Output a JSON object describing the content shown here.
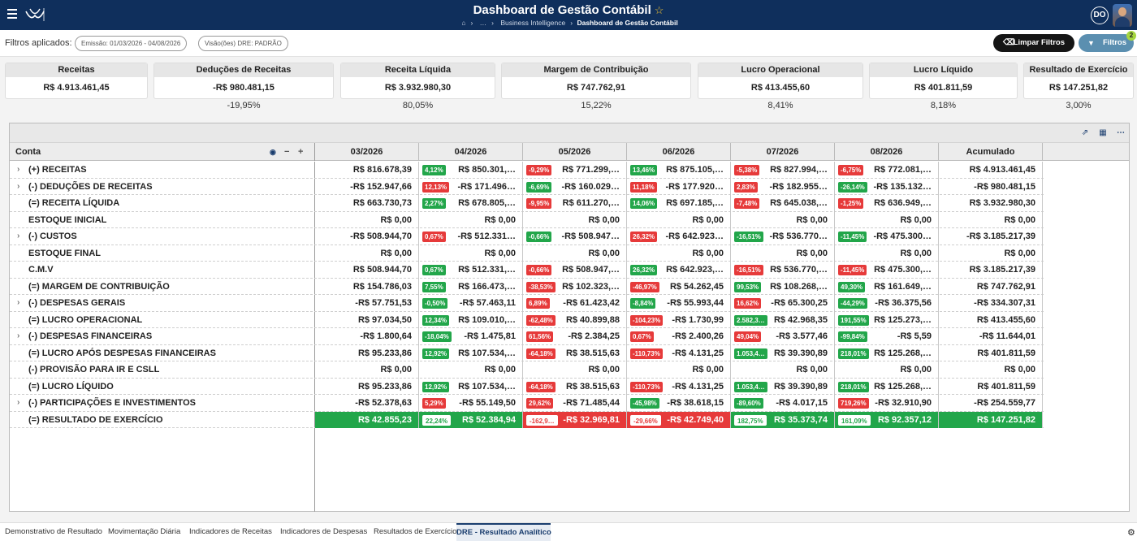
{
  "header": {
    "title": "Dashboard de Gestão Contábil",
    "star": "☆",
    "breadcrumb": [
      "…",
      "Business Intelligence",
      "Dashboard de Gestão Contábil"
    ],
    "user_initials": "DO"
  },
  "filters": {
    "label": "Filtros aplicados:",
    "chips": [
      "Emissão: 01/03/2026 - 04/08/2026",
      "Visão(ões) DRE: PADRÃO"
    ],
    "clear_label": "Limpar Filtros",
    "filter_label": "Filtros",
    "filter_count": "2"
  },
  "cards": [
    {
      "label": "Receitas",
      "value": "R$ 4.913.461,45",
      "pct": ""
    },
    {
      "label": "Deduções de Receitas",
      "value": "-R$ 980.481,15",
      "pct": "-19,95%"
    },
    {
      "label": "Receita Líquida",
      "value": "R$ 3.932.980,30",
      "pct": "80,05%"
    },
    {
      "label": "Margem de Contribuição",
      "value": "R$ 747.762,91",
      "pct": "15,22%"
    },
    {
      "label": "Lucro Operacional",
      "value": "R$ 413.455,60",
      "pct": "8,41%"
    },
    {
      "label": "Lucro Líquido",
      "value": "R$ 401.811,59",
      "pct": "8,18%"
    },
    {
      "label": "Resultado de Exercício",
      "value": "R$ 147.251,82",
      "pct": "3,00%"
    }
  ],
  "table": {
    "col_conta": "Conta",
    "columns": [
      "03/2026",
      "04/2026",
      "05/2026",
      "06/2026",
      "07/2026",
      "08/2026",
      "Acumulado"
    ],
    "rows": [
      {
        "label": "(+) RECEITAS",
        "exp": true,
        "cells": [
          {
            "v": "R$ 816.678,39"
          },
          {
            "d": "4,12%",
            "t": "up",
            "v": "R$ 850.301,…"
          },
          {
            "d": "-9,29%",
            "t": "dn",
            "v": "R$ 771.299,…"
          },
          {
            "d": "13,46%",
            "t": "up",
            "v": "R$ 875.105,…"
          },
          {
            "d": "-5,38%",
            "t": "dn",
            "v": "R$ 827.994,…"
          },
          {
            "d": "-6,75%",
            "t": "dn",
            "v": "R$ 772.081,…"
          },
          {
            "v": "R$ 4.913.461,45"
          }
        ]
      },
      {
        "label": "(-) DEDUÇÕES DE RECEITAS",
        "exp": true,
        "cells": [
          {
            "v": "-R$ 152.947,66"
          },
          {
            "d": "12,13%",
            "t": "dn",
            "v": "-R$ 171.496…"
          },
          {
            "d": "-6,69%",
            "t": "up",
            "v": "-R$ 160.029…"
          },
          {
            "d": "11,18%",
            "t": "dn",
            "v": "-R$ 177.920…"
          },
          {
            "d": "2,83%",
            "t": "dn",
            "v": "-R$ 182.955…"
          },
          {
            "d": "-26,14%",
            "t": "up",
            "v": "-R$ 135.132…"
          },
          {
            "v": "-R$ 980.481,15"
          }
        ]
      },
      {
        "label": "(=) RECEITA LÍQUIDA",
        "exp": false,
        "cells": [
          {
            "v": "R$ 663.730,73"
          },
          {
            "d": "2,27%",
            "t": "up",
            "v": "R$ 678.805,…"
          },
          {
            "d": "-9,95%",
            "t": "dn",
            "v": "R$ 611.270,…"
          },
          {
            "d": "14,06%",
            "t": "up",
            "v": "R$ 697.185,…"
          },
          {
            "d": "-7,48%",
            "t": "dn",
            "v": "R$ 645.038,…"
          },
          {
            "d": "-1,25%",
            "t": "dn",
            "v": "R$ 636.949,…"
          },
          {
            "v": "R$ 3.932.980,30"
          }
        ]
      },
      {
        "label": "ESTOQUE INICIAL",
        "exp": false,
        "cells": [
          {
            "v": "R$ 0,00"
          },
          {
            "v": "R$ 0,00"
          },
          {
            "v": "R$ 0,00"
          },
          {
            "v": "R$ 0,00"
          },
          {
            "v": "R$ 0,00"
          },
          {
            "v": "R$ 0,00"
          },
          {
            "v": "R$ 0,00"
          }
        ]
      },
      {
        "label": "(-) CUSTOS",
        "exp": true,
        "cells": [
          {
            "v": "-R$ 508.944,70"
          },
          {
            "d": "0,67%",
            "t": "dn",
            "v": "-R$ 512.331…"
          },
          {
            "d": "-0,66%",
            "t": "up",
            "v": "-R$ 508.947…"
          },
          {
            "d": "26,32%",
            "t": "dn",
            "v": "-R$ 642.923…"
          },
          {
            "d": "-16,51%",
            "t": "up",
            "v": "-R$ 536.770…"
          },
          {
            "d": "-11,45%",
            "t": "up",
            "v": "-R$ 475.300…"
          },
          {
            "v": "-R$ 3.185.217,39"
          }
        ]
      },
      {
        "label": "ESTOQUE FINAL",
        "exp": false,
        "cells": [
          {
            "v": "R$ 0,00"
          },
          {
            "v": "R$ 0,00"
          },
          {
            "v": "R$ 0,00"
          },
          {
            "v": "R$ 0,00"
          },
          {
            "v": "R$ 0,00"
          },
          {
            "v": "R$ 0,00"
          },
          {
            "v": "R$ 0,00"
          }
        ]
      },
      {
        "label": "C.M.V",
        "exp": false,
        "cells": [
          {
            "v": "R$ 508.944,70"
          },
          {
            "d": "0,67%",
            "t": "up",
            "v": "R$ 512.331,…"
          },
          {
            "d": "-0,66%",
            "t": "dn",
            "v": "R$ 508.947,…"
          },
          {
            "d": "26,32%",
            "t": "up",
            "v": "R$ 642.923,…"
          },
          {
            "d": "-16,51%",
            "t": "dn",
            "v": "R$ 536.770,…"
          },
          {
            "d": "-11,45%",
            "t": "dn",
            "v": "R$ 475.300,…"
          },
          {
            "v": "R$ 3.185.217,39"
          }
        ]
      },
      {
        "label": "(=) MARGEM DE CONTRIBUIÇÃO",
        "exp": false,
        "cells": [
          {
            "v": "R$ 154.786,03"
          },
          {
            "d": "7,55%",
            "t": "up",
            "v": "R$ 166.473,…"
          },
          {
            "d": "-38,53%",
            "t": "dn",
            "v": "R$ 102.323,…"
          },
          {
            "d": "-46,97%",
            "t": "dn",
            "v": "R$ 54.262,45"
          },
          {
            "d": "99,53%",
            "t": "up",
            "v": "R$ 108.268,…"
          },
          {
            "d": "49,30%",
            "t": "up",
            "v": "R$ 161.649,…"
          },
          {
            "v": "R$ 747.762,91"
          }
        ]
      },
      {
        "label": "(-) DESPESAS GERAIS",
        "exp": true,
        "cells": [
          {
            "v": "-R$ 57.751,53"
          },
          {
            "d": "-0,50%",
            "t": "up",
            "v": "-R$ 57.463,11"
          },
          {
            "d": "6,89%",
            "t": "dn",
            "v": "-R$ 61.423,42"
          },
          {
            "d": "-8,84%",
            "t": "up",
            "v": "-R$ 55.993,44"
          },
          {
            "d": "16,62%",
            "t": "dn",
            "v": "-R$ 65.300,25"
          },
          {
            "d": "-44,29%",
            "t": "up",
            "v": "-R$ 36.375,56"
          },
          {
            "v": "-R$ 334.307,31"
          }
        ]
      },
      {
        "label": "(=) LUCRO OPERACIONAL",
        "exp": false,
        "cells": [
          {
            "v": "R$ 97.034,50"
          },
          {
            "d": "12,34%",
            "t": "up",
            "v": "R$ 109.010,…"
          },
          {
            "d": "-62,48%",
            "t": "dn",
            "v": "R$ 40.899,88"
          },
          {
            "d": "-104,23%",
            "t": "dn",
            "v": "-R$ 1.730,99"
          },
          {
            "d": "2.582,3…",
            "t": "up",
            "v": "R$ 42.968,35"
          },
          {
            "d": "191,55%",
            "t": "up",
            "v": "R$ 125.273,…"
          },
          {
            "v": "R$ 413.455,60"
          }
        ]
      },
      {
        "label": "(-) DESPESAS FINANCEIRAS",
        "exp": true,
        "cells": [
          {
            "v": "-R$ 1.800,64"
          },
          {
            "d": "-18,04%",
            "t": "up",
            "v": "-R$ 1.475,81"
          },
          {
            "d": "61,56%",
            "t": "dn",
            "v": "-R$ 2.384,25"
          },
          {
            "d": "0,67%",
            "t": "dn",
            "v": "-R$ 2.400,26"
          },
          {
            "d": "49,04%",
            "t": "dn",
            "v": "-R$ 3.577,46"
          },
          {
            "d": "-99,84%",
            "t": "up",
            "v": "-R$ 5,59"
          },
          {
            "v": "-R$ 11.644,01"
          }
        ]
      },
      {
        "label": "(=) LUCRO APÓS DESPESAS FINANCEIRAS",
        "exp": false,
        "cells": [
          {
            "v": "R$ 95.233,86"
          },
          {
            "d": "12,92%",
            "t": "up",
            "v": "R$ 107.534,…"
          },
          {
            "d": "-64,18%",
            "t": "dn",
            "v": "R$ 38.515,63"
          },
          {
            "d": "-110,73%",
            "t": "dn",
            "v": "-R$ 4.131,25"
          },
          {
            "d": "1.053,4…",
            "t": "up",
            "v": "R$ 39.390,89"
          },
          {
            "d": "218,01%",
            "t": "up",
            "v": "R$ 125.268,…"
          },
          {
            "v": "R$ 401.811,59"
          }
        ]
      },
      {
        "label": "(-) PROVISÃO PARA IR E CSLL",
        "exp": false,
        "cells": [
          {
            "v": "R$ 0,00"
          },
          {
            "v": "R$ 0,00"
          },
          {
            "v": "R$ 0,00"
          },
          {
            "v": "R$ 0,00"
          },
          {
            "v": "R$ 0,00"
          },
          {
            "v": "R$ 0,00"
          },
          {
            "v": "R$ 0,00"
          }
        ]
      },
      {
        "label": "(=) LUCRO LÍQUIDO",
        "exp": false,
        "cells": [
          {
            "v": "R$ 95.233,86"
          },
          {
            "d": "12,92%",
            "t": "up",
            "v": "R$ 107.534,…"
          },
          {
            "d": "-64,18%",
            "t": "dn",
            "v": "R$ 38.515,63"
          },
          {
            "d": "-110,73%",
            "t": "dn",
            "v": "-R$ 4.131,25"
          },
          {
            "d": "1.053,4…",
            "t": "up",
            "v": "R$ 39.390,89"
          },
          {
            "d": "218,01%",
            "t": "up",
            "v": "R$ 125.268,…"
          },
          {
            "v": "R$ 401.811,59"
          }
        ]
      },
      {
        "label": "(-) PARTICIPAÇÕES E INVESTIMENTOS",
        "exp": true,
        "cells": [
          {
            "v": "-R$ 52.378,63"
          },
          {
            "d": "5,29%",
            "t": "dn",
            "v": "-R$ 55.149,50"
          },
          {
            "d": "29,62%",
            "t": "dn",
            "v": "-R$ 71.485,44"
          },
          {
            "d": "-45,98%",
            "t": "up",
            "v": "-R$ 38.618,15"
          },
          {
            "d": "-89,60%",
            "t": "up",
            "v": "-R$ 4.017,15"
          },
          {
            "d": "719,26%",
            "t": "dn",
            "v": "-R$ 32.910,90"
          },
          {
            "v": "-R$ 254.559,77"
          }
        ]
      },
      {
        "label": "(=) RESULTADO DE EXERCÍCIO",
        "exp": false,
        "result": true,
        "cells": [
          {
            "v": "R$ 42.855,23",
            "bg": "up"
          },
          {
            "d": "22,24%",
            "t": "up",
            "v": "R$ 52.384,94",
            "bg": "up"
          },
          {
            "d": "-162,9…",
            "t": "dn",
            "v": "-R$ 32.969,81",
            "bg": "dn"
          },
          {
            "d": "-29,66%",
            "t": "dn",
            "v": "-R$ 42.749,40",
            "bg": "dn"
          },
          {
            "d": "182,75%",
            "t": "up",
            "v": "R$ 35.373,74",
            "bg": "up"
          },
          {
            "d": "161,09%",
            "t": "up",
            "v": "R$ 92.357,12",
            "bg": "up"
          },
          {
            "v": "R$ 147.251,82",
            "bg": "up"
          }
        ]
      }
    ]
  },
  "tabs": [
    "Demonstrativo de Resultado",
    "Movimentação Diária",
    "Indicadores de Receitas",
    "Indicadores de Despesas",
    "Resultados de Exercício",
    "DRE - Resultado Analítico"
  ],
  "active_tab": 5,
  "colors": {
    "header": "#0f2f5c",
    "positive": "#22a64a",
    "negative": "#e63a3a"
  }
}
